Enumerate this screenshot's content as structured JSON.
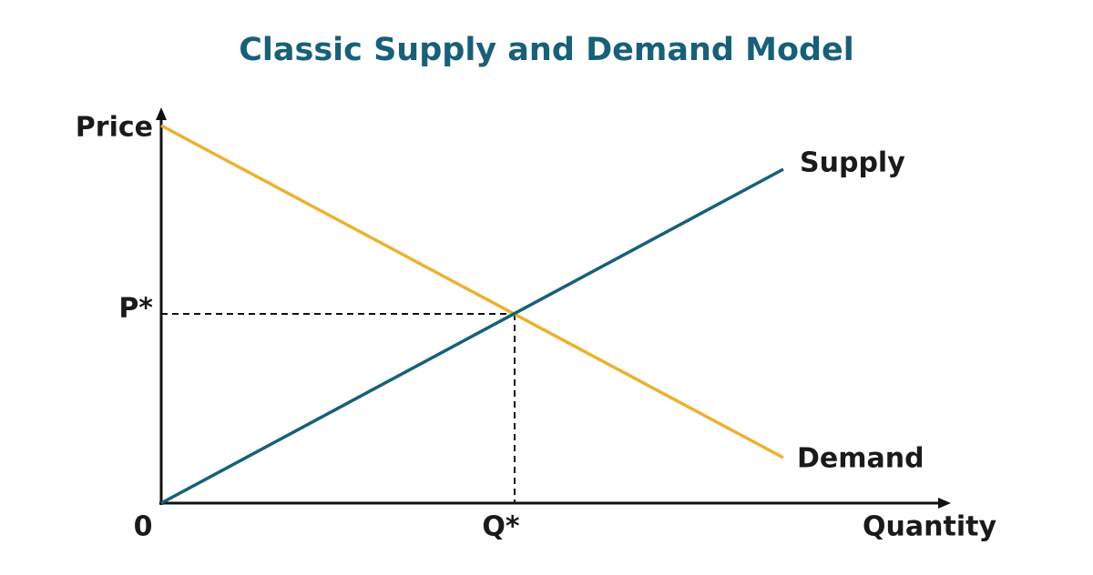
{
  "title": "Classic Supply and Demand Model",
  "axes": {
    "y_label": "Price",
    "x_label": "Quantity",
    "origin": "0"
  },
  "equilibrium": {
    "price_label": "P*",
    "quantity_label": "Q*"
  },
  "curves": {
    "supply": "Supply",
    "demand": "Demand"
  }
}
